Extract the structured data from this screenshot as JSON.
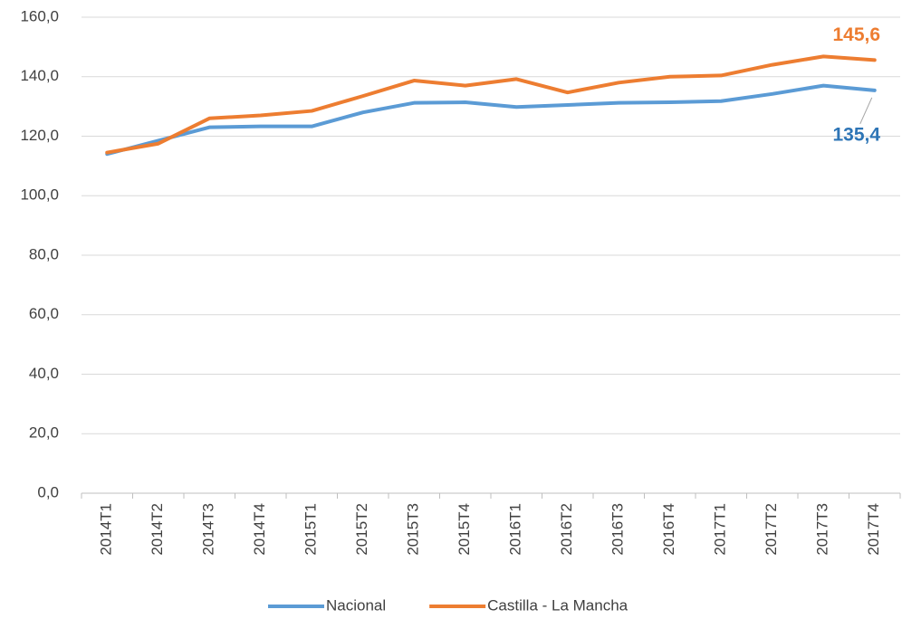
{
  "chart_data": {
    "type": "line",
    "categories": [
      "2014T1",
      "2014T2",
      "2014T3",
      "2014T4",
      "2015T1",
      "2015T2",
      "2015T3",
      "2015T4",
      "2016T1",
      "2016T2",
      "2016T3",
      "2016T4",
      "2017T1",
      "2017T2",
      "2017T3",
      "2017T4"
    ],
    "series": [
      {
        "name": "Nacional",
        "color": "#5b9bd5",
        "label_color": "#2e75b6",
        "values": [
          114,
          118.5,
          123,
          123.3,
          123.3,
          128,
          131.2,
          131.4,
          129.8,
          130.5,
          131.2,
          131.4,
          131.8,
          134.2,
          137,
          135.4
        ],
        "value_labels": [
          null,
          null,
          null,
          null,
          null,
          null,
          null,
          null,
          null,
          null,
          null,
          null,
          null,
          null,
          null,
          "135,4"
        ]
      },
      {
        "name": "Castilla - La Mancha",
        "color": "#ed7d31",
        "label_color": "#ed7d31",
        "values": [
          114.5,
          117.5,
          126,
          127,
          128.5,
          133.5,
          138.7,
          137,
          139.2,
          134.7,
          138,
          140,
          140.4,
          144,
          146.8,
          145.6
        ],
        "value_labels": [
          null,
          null,
          null,
          null,
          null,
          null,
          null,
          null,
          null,
          null,
          null,
          null,
          null,
          null,
          null,
          "145,6"
        ]
      }
    ],
    "ylim": [
      0,
      160
    ],
    "yticks": [
      {
        "value": 0,
        "label": "0,0"
      },
      {
        "value": 20,
        "label": "20,0"
      },
      {
        "value": 40,
        "label": "40,0"
      },
      {
        "value": 60,
        "label": "60,0"
      },
      {
        "value": 80,
        "label": "80,0"
      },
      {
        "value": 100,
        "label": "100,0"
      },
      {
        "value": 120,
        "label": "120,0"
      },
      {
        "value": 140,
        "label": "140,0"
      },
      {
        "value": 160,
        "label": "160,0"
      }
    ],
    "grid": true,
    "legend": "bottom"
  }
}
